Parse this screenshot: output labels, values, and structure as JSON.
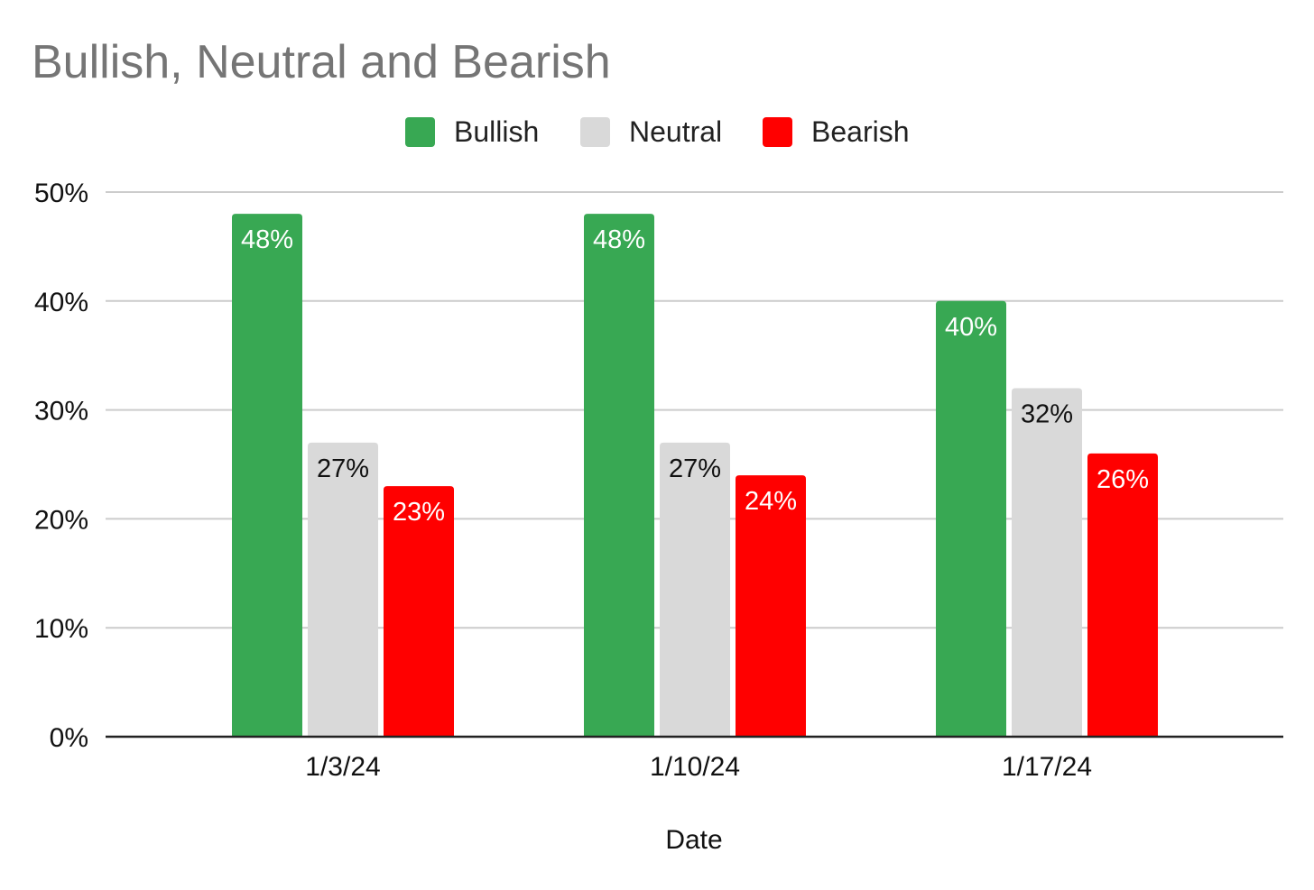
{
  "chart_data": {
    "type": "bar",
    "title": "Bullish, Neutral and Bearish",
    "xlabel": "Date",
    "ylabel": "",
    "categories": [
      "1/3/24",
      "1/10/24",
      "1/17/24"
    ],
    "series": [
      {
        "name": "Bullish",
        "values": [
          48,
          48,
          40
        ],
        "color": "#38a853",
        "label_color": "#ffffff"
      },
      {
        "name": "Neutral",
        "values": [
          27,
          27,
          32
        ],
        "color": "#d9d9d9",
        "label_color": "#111111"
      },
      {
        "name": "Bearish",
        "values": [
          23,
          24,
          26
        ],
        "color": "#ff0000",
        "label_color": "#ffffff"
      }
    ],
    "value_format": "percent",
    "ylim": [
      0,
      50
    ],
    "yticks": [
      0,
      10,
      20,
      30,
      40,
      50
    ],
    "ytick_labels": [
      "0%",
      "10%",
      "20%",
      "30%",
      "40%",
      "50%"
    ],
    "grid": true,
    "legend_position": "top-center"
  }
}
